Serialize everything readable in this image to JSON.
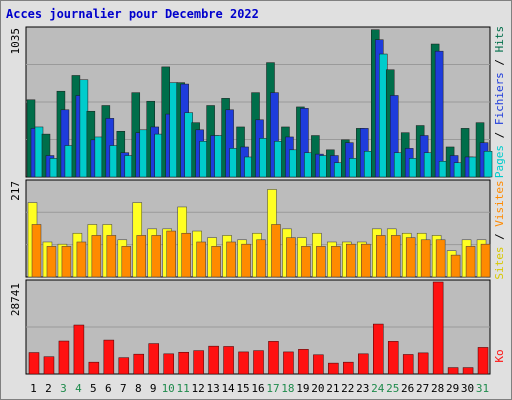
{
  "title": "Acces journalier pour Decembre 2022",
  "colors": {
    "title": "#0000cc",
    "pages": "#00cccc",
    "hits": "#006e4a",
    "fichiers": "#1e3cdc",
    "visites": "#ff8a00",
    "sites": "#ffff22",
    "ko": "#ff1111",
    "weekend_day": "#1f8b4c",
    "weekday": "#000000",
    "panel_bg": "#bcbcbc",
    "frame_bg": "#e0e0e0"
  },
  "chart_data": [
    {
      "type": "bar",
      "ylabel": "1035",
      "ylim": [
        0,
        1035
      ],
      "side_label": {
        "pages": "Pages",
        "sep1": " / ",
        "fichiers": "Fichiers",
        "sep2": " / ",
        "hits": "Hits"
      },
      "categories": [
        "1",
        "2",
        "3",
        "4",
        "5",
        "6",
        "7",
        "8",
        "9",
        "10",
        "11",
        "12",
        "13",
        "14",
        "15",
        "16",
        "17",
        "18",
        "19",
        "20",
        "21",
        "22",
        "23",
        "24",
        "25",
        "26",
        "27",
        "28",
        "29",
        "30",
        "31"
      ],
      "series": [
        {
          "name": "Hits",
          "values": [
            540,
            300,
            600,
            710,
            460,
            500,
            320,
            590,
            530,
            770,
            660,
            380,
            500,
            550,
            350,
            590,
            800,
            350,
            490,
            290,
            190,
            260,
            340,
            1030,
            750,
            310,
            360,
            930,
            210,
            340,
            380
          ]
        },
        {
          "name": "Fichiers",
          "values": [
            340,
            150,
            470,
            570,
            260,
            410,
            170,
            310,
            350,
            440,
            650,
            330,
            290,
            470,
            210,
            400,
            590,
            280,
            480,
            160,
            150,
            240,
            340,
            960,
            570,
            200,
            290,
            880,
            150,
            140,
            240
          ]
        },
        {
          "name": "Pages",
          "values": [
            350,
            130,
            220,
            680,
            280,
            220,
            150,
            330,
            300,
            660,
            450,
            250,
            290,
            200,
            140,
            270,
            250,
            190,
            170,
            150,
            100,
            130,
            180,
            860,
            170,
            130,
            170,
            110,
            100,
            140,
            180
          ]
        }
      ]
    },
    {
      "type": "bar",
      "ylabel": "217",
      "ylim": [
        0,
        217
      ],
      "side_label": {
        "sites": "Sites",
        "sep": " / ",
        "visites": "Visites"
      },
      "categories": [
        "1",
        "2",
        "3",
        "4",
        "5",
        "6",
        "7",
        "8",
        "9",
        "10",
        "11",
        "12",
        "13",
        "14",
        "15",
        "16",
        "17",
        "18",
        "19",
        "20",
        "21",
        "22",
        "23",
        "24",
        "25",
        "26",
        "27",
        "28",
        "29",
        "30",
        "31"
      ],
      "series": [
        {
          "name": "Sites",
          "values": [
            170,
            80,
            75,
            100,
            120,
            120,
            85,
            170,
            110,
            110,
            160,
            105,
            90,
            95,
            85,
            100,
            200,
            110,
            90,
            100,
            80,
            80,
            80,
            110,
            110,
            100,
            100,
            95,
            60,
            85,
            85
          ]
        },
        {
          "name": "Visites",
          "values": [
            120,
            70,
            70,
            80,
            95,
            95,
            70,
            95,
            95,
            105,
            100,
            80,
            70,
            80,
            75,
            85,
            120,
            90,
            70,
            70,
            70,
            75,
            75,
            95,
            95,
            90,
            85,
            85,
            50,
            70,
            75
          ]
        }
      ]
    },
    {
      "type": "bar",
      "ylabel": "28741",
      "ylim": [
        0,
        28741
      ],
      "side_label": {
        "ko": "Ko"
      },
      "categories": [
        "1",
        "2",
        "3",
        "4",
        "5",
        "6",
        "7",
        "8",
        "9",
        "10",
        "11",
        "12",
        "13",
        "14",
        "15",
        "16",
        "17",
        "18",
        "19",
        "20",
        "21",
        "22",
        "23",
        "24",
        "25",
        "26",
        "27",
        "28",
        "29",
        "30",
        "31"
      ],
      "series": [
        {
          "name": "Ko",
          "values": [
            6700,
            5400,
            10300,
            15300,
            3700,
            10600,
            5100,
            6200,
            9500,
            6300,
            6800,
            7300,
            8700,
            8600,
            6900,
            7300,
            10200,
            6900,
            7700,
            6000,
            3400,
            3700,
            6300,
            15600,
            10200,
            6100,
            6600,
            28741,
            2000,
            2000,
            8300
          ]
        }
      ]
    }
  ],
  "x_axis": {
    "days": [
      "1",
      "2",
      "3",
      "4",
      "5",
      "6",
      "7",
      "8",
      "9",
      "10",
      "11",
      "12",
      "13",
      "14",
      "15",
      "16",
      "17",
      "18",
      "19",
      "20",
      "21",
      "22",
      "23",
      "24",
      "25",
      "26",
      "27",
      "28",
      "29",
      "30",
      "31"
    ],
    "weekend": [
      "3",
      "4",
      "10",
      "11",
      "17",
      "18",
      "24",
      "25",
      "31"
    ]
  }
}
